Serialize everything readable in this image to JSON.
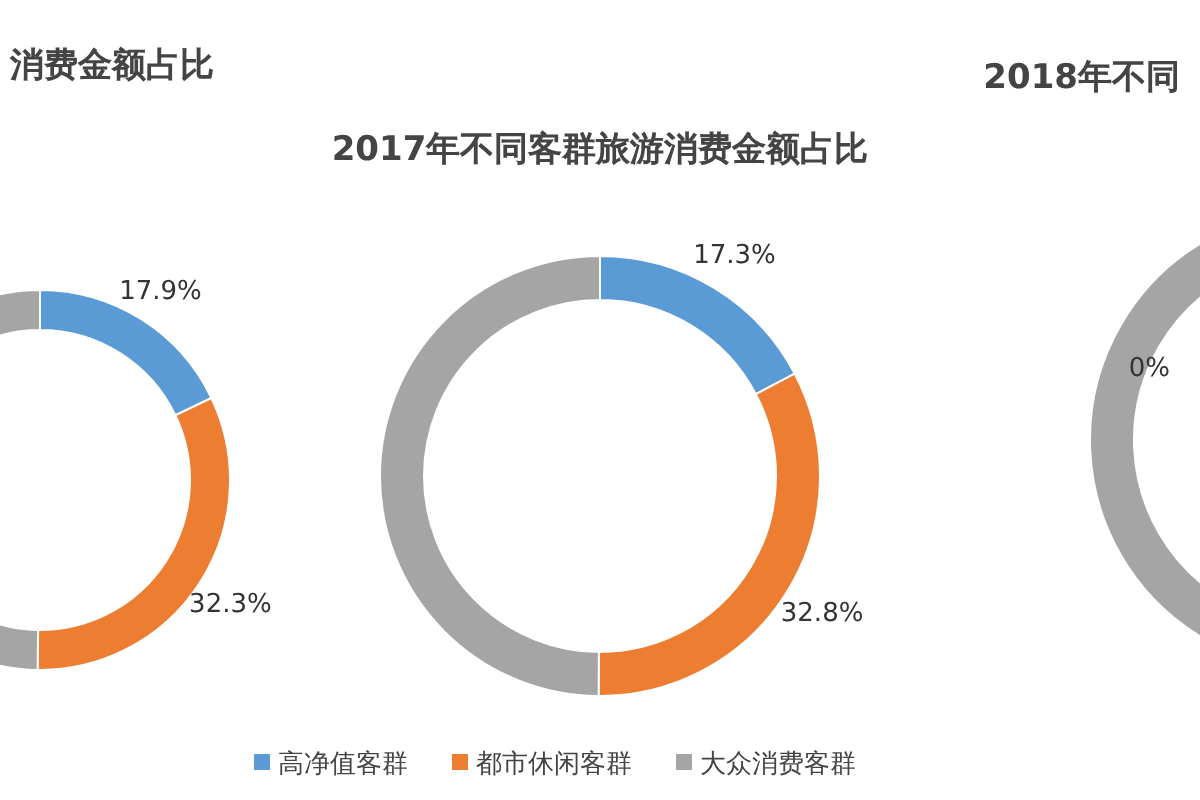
{
  "chart_data": [
    {
      "type": "donut",
      "title": "消费金额占比",
      "values": [
        17.9,
        32.3,
        49.8
      ],
      "value_labels": [
        "17.9%",
        "32.3%",
        null
      ],
      "colors": [
        "#5b9bd5",
        "#ed7d31",
        "#a5a5a5"
      ],
      "legend": false
    },
    {
      "type": "donut",
      "title": "2017年不同客群旅游消费金额占比",
      "categories": [
        "高净值客群",
        "都市休闲客群",
        "大众消费客群"
      ],
      "values": [
        17.3,
        32.8,
        49.9
      ],
      "value_labels": [
        "17.3%",
        "32.8%",
        null
      ],
      "colors": [
        "#5b9bd5",
        "#ed7d31",
        "#a5a5a5"
      ],
      "legend": "bottom"
    },
    {
      "type": "other",
      "title": "2018年不同",
      "annotations": [
        "0%"
      ]
    }
  ]
}
